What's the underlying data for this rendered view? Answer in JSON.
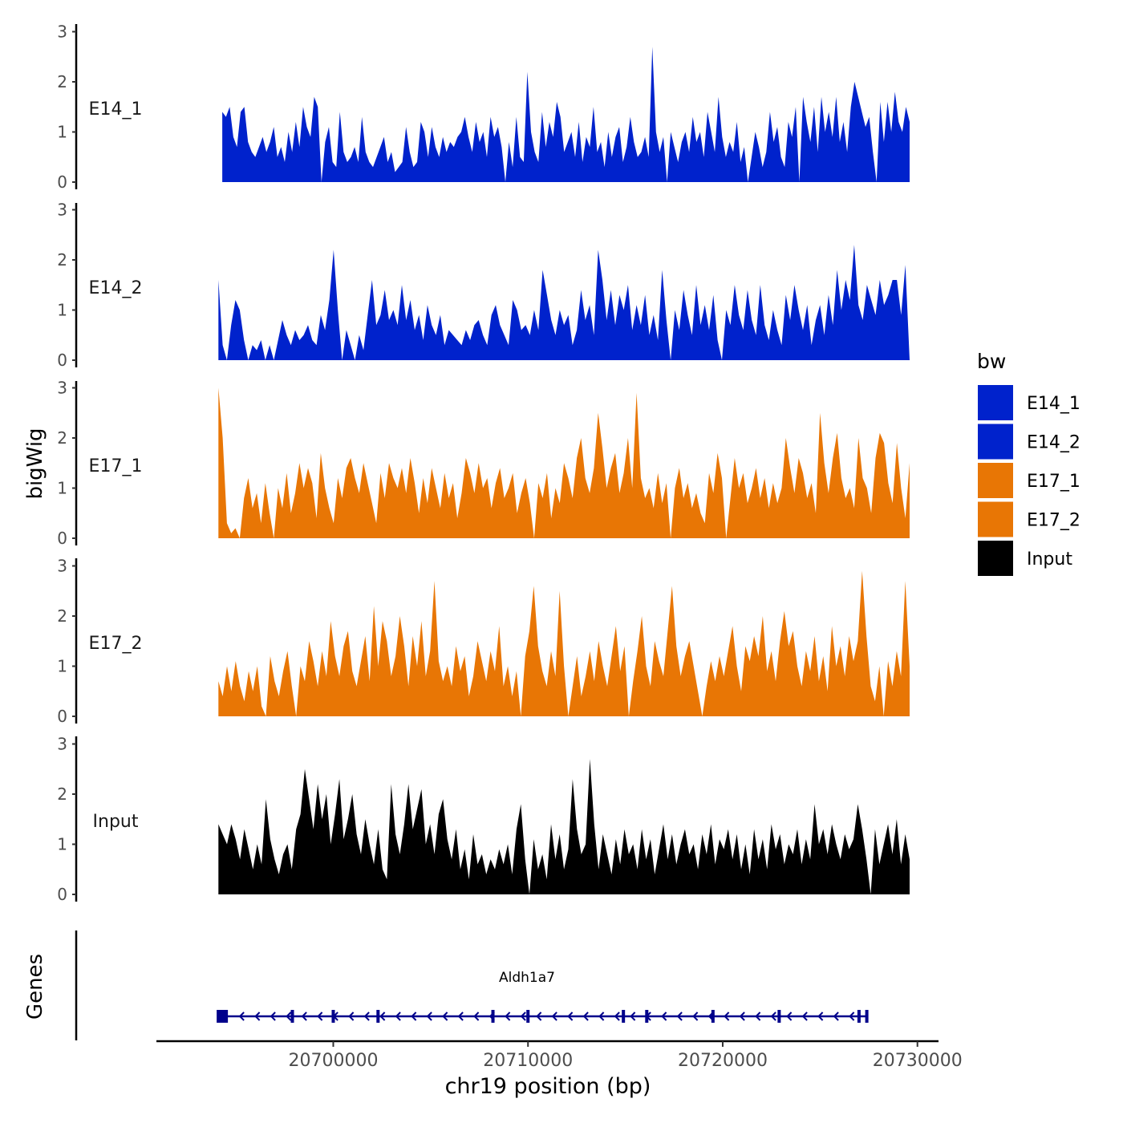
{
  "chart_data": {
    "type": "area",
    "title": "",
    "ylabel": "bigWig",
    "xlabel": "chr19 position (bp)",
    "x_tick_labels": [
      "20700000",
      "20710000",
      "20720000",
      "20730000"
    ],
    "x_ticks": [
      20700000,
      20710000,
      20720000,
      20730000
    ],
    "xlim": [
      20691000,
      20731000
    ],
    "ylim": [
      0,
      3
    ],
    "y_ticks": [
      0,
      1,
      2,
      3
    ],
    "y_tick_labels": [
      "0",
      "1",
      "2",
      "3"
    ],
    "legend": {
      "title": "bw",
      "placement": "right",
      "entries": [
        {
          "label": "E14_1",
          "color": "#0022cc"
        },
        {
          "label": "E14_2",
          "color": "#0022cc"
        },
        {
          "label": "E17_1",
          "color": "#e87605"
        },
        {
          "label": "E17_2",
          "color": "#e87605"
        },
        {
          "label": "Input",
          "color": "#000000"
        }
      ]
    },
    "series": [
      {
        "name": "E14_1",
        "color": "#0022cc",
        "x_start": 20694300,
        "x_end": 20729600,
        "values": [
          1.4,
          1.3,
          1.5,
          0.9,
          0.7,
          1.4,
          1.5,
          0.8,
          0.6,
          0.5,
          0.7,
          0.9,
          0.6,
          0.8,
          1.1,
          0.5,
          0.7,
          0.4,
          1.0,
          0.6,
          1.2,
          0.7,
          1.5,
          1.1,
          0.9,
          1.7,
          1.5,
          0.0,
          0.8,
          1.1,
          0.4,
          0.3,
          1.4,
          0.6,
          0.4,
          0.5,
          0.7,
          0.4,
          1.3,
          0.6,
          0.4,
          0.3,
          0.5,
          0.7,
          0.9,
          0.4,
          0.6,
          0.2,
          0.3,
          0.4,
          1.1,
          0.6,
          0.3,
          0.4,
          1.2,
          1.0,
          0.5,
          1.1,
          0.7,
          0.5,
          0.9,
          0.6,
          0.8,
          0.7,
          0.9,
          1.0,
          1.3,
          0.9,
          0.6,
          1.2,
          0.8,
          1.0,
          0.5,
          1.3,
          0.9,
          1.1,
          0.7,
          0.0,
          0.8,
          0.3,
          1.3,
          0.5,
          0.4,
          2.2,
          1.0,
          0.6,
          0.4,
          1.4,
          0.7,
          1.2,
          0.9,
          1.6,
          1.3,
          0.6,
          0.8,
          1.0,
          0.5,
          1.2,
          0.4,
          0.9,
          0.7,
          1.5,
          0.6,
          0.8,
          0.3,
          1.0,
          0.5,
          0.9,
          1.1,
          0.4,
          0.7,
          1.3,
          0.8,
          0.5,
          0.6,
          0.9,
          0.5,
          2.7,
          1.0,
          0.6,
          0.9,
          0.0,
          1.0,
          0.7,
          0.4,
          0.8,
          1.0,
          0.6,
          1.3,
          0.8,
          1.0,
          0.5,
          1.4,
          1.0,
          0.6,
          1.7,
          0.9,
          0.5,
          0.8,
          0.6,
          1.2,
          0.4,
          0.7,
          0.0,
          0.5,
          1.0,
          0.7,
          0.3,
          0.6,
          1.4,
          0.8,
          1.1,
          0.5,
          0.3,
          1.2,
          0.9,
          1.5,
          0.0,
          1.7,
          1.2,
          0.8,
          1.5,
          0.6,
          1.7,
          1.0,
          1.4,
          0.9,
          1.7,
          0.8,
          1.2,
          0.6,
          1.5,
          2.0,
          1.7,
          1.4,
          1.1,
          1.3,
          0.6,
          0.0,
          1.6,
          0.8,
          1.6,
          1.0,
          1.8,
          1.2,
          1.0,
          1.5,
          1.2
        ],
        "label": "E14_1"
      },
      {
        "name": "E14_2",
        "color": "#0022cc",
        "x_start": 20694100,
        "x_end": 20729600,
        "values": [
          1.6,
          0.3,
          0.0,
          0.7,
          1.2,
          1.0,
          0.4,
          0.0,
          0.3,
          0.2,
          0.4,
          0.0,
          0.3,
          0.0,
          0.4,
          0.8,
          0.5,
          0.3,
          0.6,
          0.4,
          0.5,
          0.7,
          0.4,
          0.3,
          0.9,
          0.6,
          1.2,
          2.2,
          1.0,
          0.0,
          0.6,
          0.3,
          0.0,
          0.5,
          0.2,
          0.9,
          1.6,
          0.7,
          0.9,
          1.4,
          0.8,
          1.0,
          0.7,
          1.5,
          0.8,
          1.2,
          0.6,
          0.9,
          0.4,
          1.1,
          0.7,
          0.5,
          0.9,
          0.3,
          0.6,
          0.5,
          0.4,
          0.3,
          0.6,
          0.4,
          0.7,
          0.8,
          0.5,
          0.3,
          0.9,
          1.1,
          0.7,
          0.5,
          0.3,
          1.2,
          1.0,
          0.6,
          0.7,
          0.5,
          1.0,
          0.6,
          1.8,
          1.3,
          0.8,
          0.5,
          1.0,
          0.7,
          0.9,
          0.3,
          0.6,
          1.4,
          0.8,
          1.1,
          0.5,
          2.2,
          1.6,
          0.8,
          1.4,
          0.7,
          1.3,
          1.0,
          1.5,
          0.6,
          1.1,
          0.7,
          1.3,
          0.5,
          0.9,
          0.4,
          1.8,
          0.8,
          0.0,
          1.0,
          0.6,
          1.4,
          0.9,
          0.5,
          1.5,
          0.7,
          1.1,
          0.6,
          1.3,
          0.4,
          0.0,
          1.0,
          0.7,
          1.5,
          0.9,
          0.6,
          1.4,
          0.8,
          0.5,
          1.5,
          0.7,
          0.4,
          1.0,
          0.6,
          0.3,
          1.3,
          0.8,
          1.5,
          1.0,
          0.6,
          1.1,
          0.3,
          0.8,
          1.1,
          0.5,
          1.3,
          0.7,
          1.8,
          1.0,
          1.6,
          1.2,
          2.3,
          1.1,
          0.8,
          1.5,
          1.2,
          0.9,
          1.6,
          1.1,
          1.3,
          1.6,
          1.6,
          0.9,
          1.9,
          0.0
        ],
        "label": "E14_2"
      },
      {
        "name": "E17_1",
        "color": "#e87605",
        "x_start": 20694100,
        "x_end": 20729600,
        "values": [
          3.0,
          2.0,
          0.3,
          0.1,
          0.2,
          0.0,
          0.8,
          1.2,
          0.6,
          0.9,
          0.3,
          1.1,
          0.5,
          0.0,
          1.0,
          0.6,
          1.3,
          0.5,
          0.9,
          1.5,
          1.0,
          1.4,
          1.1,
          0.4,
          1.7,
          1.0,
          0.6,
          0.3,
          1.2,
          0.8,
          1.4,
          1.6,
          1.2,
          0.9,
          1.5,
          1.1,
          0.7,
          0.3,
          1.3,
          0.8,
          1.5,
          1.2,
          1.0,
          1.4,
          0.9,
          1.6,
          1.1,
          0.5,
          1.2,
          0.7,
          1.4,
          1.0,
          0.6,
          1.3,
          0.8,
          1.1,
          0.4,
          0.9,
          1.6,
          1.3,
          0.9,
          1.5,
          1.0,
          1.2,
          0.6,
          1.1,
          1.4,
          0.8,
          1.0,
          1.3,
          0.5,
          0.9,
          1.2,
          0.7,
          0.0,
          1.1,
          0.8,
          1.3,
          0.4,
          1.0,
          0.7,
          1.5,
          1.2,
          0.8,
          1.6,
          2.0,
          1.2,
          0.9,
          1.4,
          2.5,
          1.8,
          1.0,
          1.4,
          1.7,
          0.9,
          1.3,
          2.0,
          1.0,
          2.9,
          1.2,
          0.8,
          1.0,
          0.6,
          1.3,
          0.7,
          1.1,
          0.0,
          1.0,
          1.4,
          0.8,
          1.1,
          0.6,
          0.9,
          0.5,
          0.3,
          1.3,
          0.9,
          1.7,
          1.2,
          0.0,
          0.8,
          1.6,
          1.0,
          1.3,
          0.7,
          1.0,
          1.4,
          0.8,
          1.2,
          0.6,
          1.1,
          0.7,
          1.0,
          2.0,
          1.4,
          0.9,
          1.6,
          1.3,
          0.8,
          1.1,
          0.5,
          2.5,
          1.5,
          0.9,
          1.6,
          2.1,
          1.2,
          0.8,
          1.0,
          0.6,
          2.0,
          1.2,
          1.0,
          0.5,
          1.6,
          2.1,
          1.9,
          1.1,
          0.7,
          1.9,
          1.0,
          0.4,
          1.5
        ],
        "label": "E17_1"
      },
      {
        "name": "E17_2",
        "color": "#e87605",
        "x_start": 20694100,
        "x_end": 20729600,
        "values": [
          0.7,
          0.4,
          1.0,
          0.5,
          1.1,
          0.6,
          0.3,
          0.9,
          0.5,
          1.0,
          0.2,
          0.0,
          1.2,
          0.7,
          0.4,
          0.9,
          1.3,
          0.6,
          0.0,
          1.0,
          0.7,
          1.5,
          1.1,
          0.6,
          1.3,
          0.8,
          1.9,
          1.2,
          0.8,
          1.4,
          1.7,
          0.9,
          0.6,
          1.1,
          1.6,
          0.7,
          2.2,
          1.0,
          1.9,
          1.5,
          0.8,
          1.2,
          2.0,
          1.4,
          0.6,
          1.6,
          1.0,
          1.9,
          0.8,
          1.3,
          2.7,
          1.1,
          0.7,
          1.0,
          0.6,
          1.4,
          0.9,
          1.2,
          0.4,
          0.8,
          1.5,
          1.1,
          0.7,
          1.3,
          0.9,
          1.8,
          0.6,
          1.0,
          0.4,
          0.9,
          0.0,
          1.2,
          1.7,
          2.6,
          1.4,
          0.9,
          0.6,
          1.3,
          0.8,
          2.5,
          1.0,
          0.0,
          0.6,
          1.2,
          0.4,
          0.8,
          1.3,
          0.7,
          1.5,
          1.0,
          0.6,
          1.2,
          1.8,
          0.9,
          1.4,
          0.0,
          0.7,
          1.3,
          2.0,
          1.0,
          0.6,
          1.5,
          1.1,
          0.8,
          1.7,
          2.6,
          1.4,
          0.8,
          1.2,
          1.5,
          1.0,
          0.5,
          0.0,
          0.6,
          1.1,
          0.7,
          1.2,
          0.8,
          1.3,
          1.8,
          1.0,
          0.5,
          1.4,
          1.1,
          1.6,
          1.2,
          2.0,
          0.9,
          1.3,
          0.7,
          1.5,
          2.1,
          1.4,
          1.7,
          1.0,
          0.6,
          1.3,
          0.9,
          1.6,
          0.7,
          1.2,
          0.5,
          1.8,
          1.0,
          1.4,
          0.8,
          1.6,
          1.1,
          1.5,
          2.9,
          1.6,
          0.6,
          0.3,
          1.0,
          0.0,
          1.1,
          0.6,
          1.3,
          0.8,
          2.7,
          1.0
        ],
        "label": "E17_2"
      },
      {
        "name": "Input",
        "color": "#000000",
        "x_start": 20694100,
        "x_end": 20729600,
        "values": [
          1.4,
          1.2,
          1.0,
          1.4,
          1.1,
          0.7,
          1.3,
          0.9,
          0.5,
          1.0,
          0.6,
          1.9,
          1.1,
          0.7,
          0.4,
          0.8,
          1.0,
          0.5,
          1.3,
          1.6,
          2.5,
          1.9,
          1.3,
          2.2,
          1.5,
          2.0,
          1.0,
          1.6,
          2.3,
          1.1,
          1.5,
          2.0,
          1.2,
          0.8,
          1.5,
          1.0,
          0.6,
          1.3,
          0.5,
          0.3,
          2.2,
          1.2,
          0.8,
          1.4,
          2.2,
          1.3,
          1.7,
          2.1,
          1.0,
          1.4,
          0.8,
          1.6,
          1.9,
          1.1,
          0.7,
          1.3,
          0.5,
          0.9,
          0.3,
          1.2,
          0.6,
          0.8,
          0.4,
          0.7,
          0.5,
          0.9,
          0.6,
          1.0,
          0.4,
          1.3,
          1.8,
          0.7,
          0.0,
          1.1,
          0.5,
          0.8,
          0.3,
          1.4,
          0.7,
          1.2,
          0.5,
          0.9,
          2.3,
          1.3,
          0.8,
          1.0,
          2.7,
          1.4,
          0.5,
          1.2,
          0.8,
          0.4,
          1.1,
          0.6,
          1.3,
          0.8,
          1.0,
          0.5,
          1.3,
          0.7,
          1.1,
          0.4,
          0.9,
          1.4,
          0.7,
          1.2,
          0.6,
          1.0,
          1.3,
          0.8,
          1.0,
          0.5,
          1.2,
          0.8,
          1.4,
          0.6,
          1.1,
          0.9,
          1.3,
          0.7,
          1.2,
          0.5,
          1.0,
          0.4,
          1.3,
          0.7,
          1.1,
          0.5,
          1.4,
          0.9,
          1.2,
          0.6,
          1.0,
          0.8,
          1.3,
          0.6,
          1.1,
          0.7,
          1.8,
          1.0,
          1.3,
          0.8,
          1.4,
          1.0,
          0.7,
          1.2,
          0.9,
          1.1,
          1.8,
          1.3,
          0.7,
          0.0,
          1.3,
          0.6,
          1.0,
          1.4,
          0.8,
          1.5,
          0.6,
          1.2,
          0.7
        ],
        "label": "Input"
      }
    ],
    "genes_track": {
      "label": "Genes",
      "gene_name": "Aldh1a7",
      "strand": "-",
      "start": 20694300,
      "end": 20727400,
      "exons": [
        20694500,
        20697900,
        20700000,
        20702300,
        20708200,
        20710000,
        20714900,
        20716100,
        20719500,
        20722900,
        20727000,
        20727400
      ]
    }
  }
}
